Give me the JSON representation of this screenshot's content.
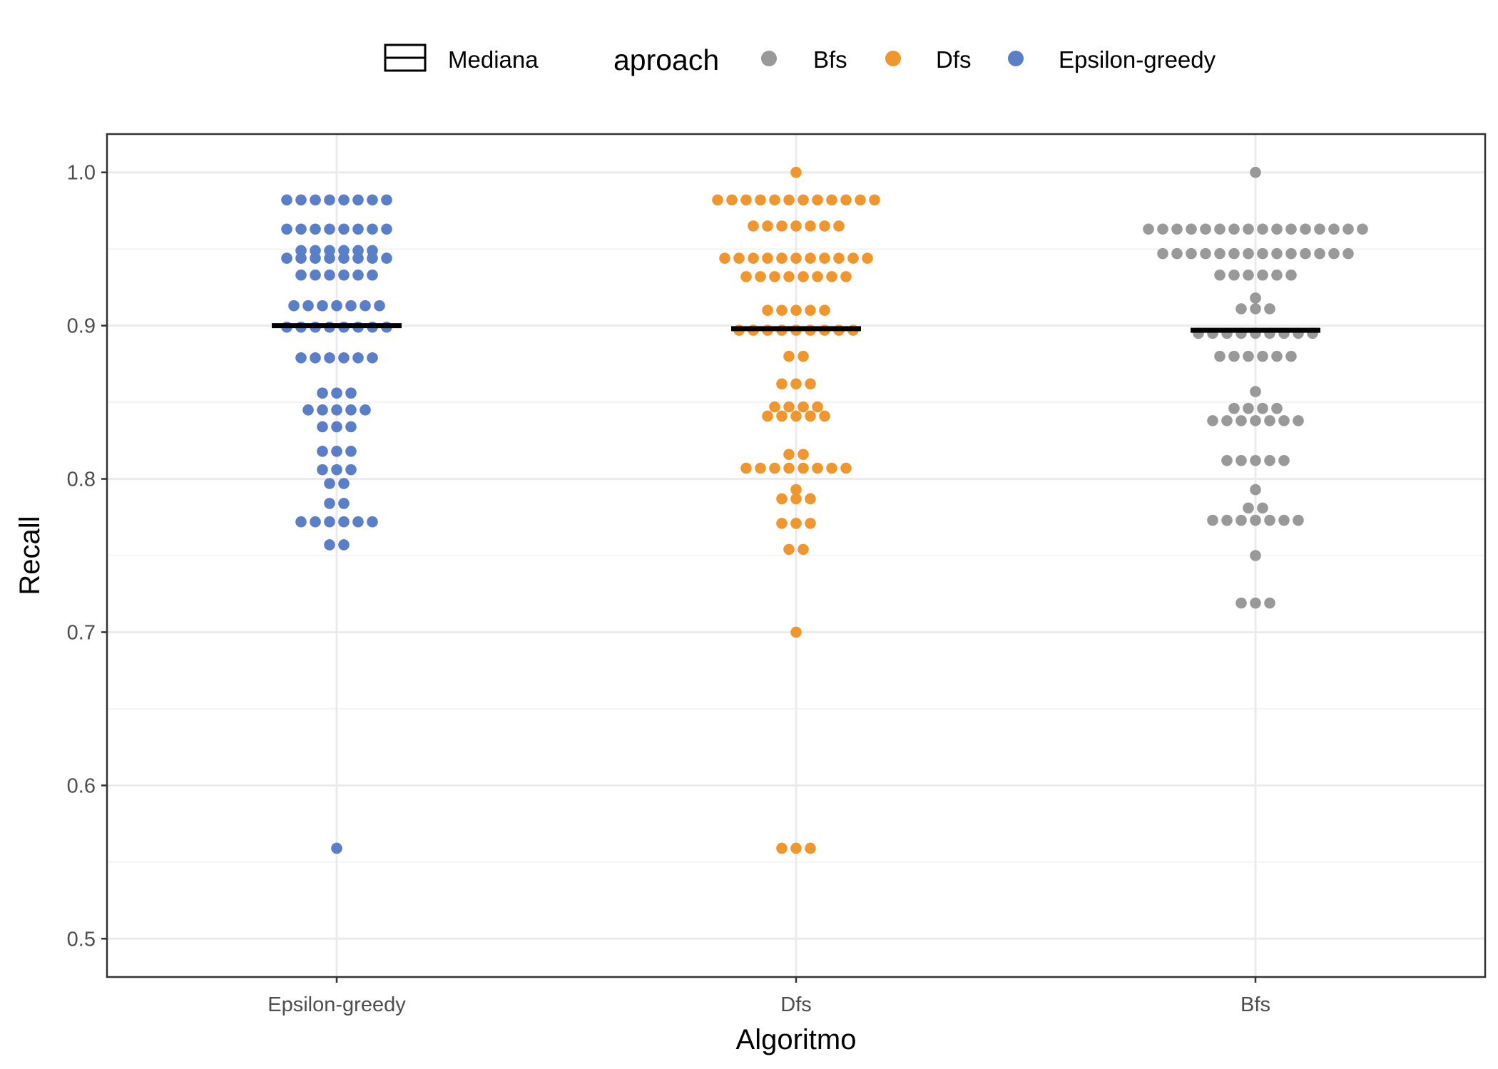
{
  "legend": {
    "median_label": "Mediana",
    "title": "aproach",
    "entries": [
      {
        "label": "Bfs",
        "color": "#999999"
      },
      {
        "label": "Dfs",
        "color": "#F0962F"
      },
      {
        "label": "Epsilon-greedy",
        "color": "#5A7EC7"
      }
    ]
  },
  "chart_data": {
    "type": "scatter",
    "subtype": "dotplot",
    "xlabel": "Algoritmo",
    "ylabel": "Recall",
    "ylim": [
      0.475,
      1.025
    ],
    "yticks": [
      0.5,
      0.6,
      0.7,
      0.8,
      0.9,
      1.0
    ],
    "ytick_labels": [
      "0.5",
      "0.6",
      "0.7",
      "0.8",
      "0.9",
      "1.0"
    ],
    "categories": [
      "Epsilon-greedy",
      "Dfs",
      "Bfs"
    ],
    "grid": true,
    "legend_position": "top",
    "series": [
      {
        "name": "Epsilon-greedy",
        "color": "#5A7EC7",
        "median": 0.9,
        "bins": [
          {
            "y": 0.982,
            "n": 8
          },
          {
            "y": 0.963,
            "n": 8
          },
          {
            "y": 0.949,
            "n": 6
          },
          {
            "y": 0.944,
            "n": 8
          },
          {
            "y": 0.933,
            "n": 6
          },
          {
            "y": 0.913,
            "n": 7
          },
          {
            "y": 0.899,
            "n": 8
          },
          {
            "y": 0.879,
            "n": 6
          },
          {
            "y": 0.856,
            "n": 3
          },
          {
            "y": 0.845,
            "n": 5
          },
          {
            "y": 0.834,
            "n": 3
          },
          {
            "y": 0.818,
            "n": 3
          },
          {
            "y": 0.806,
            "n": 3
          },
          {
            "y": 0.797,
            "n": 2
          },
          {
            "y": 0.784,
            "n": 2
          },
          {
            "y": 0.772,
            "n": 6
          },
          {
            "y": 0.757,
            "n": 2
          },
          {
            "y": 0.559,
            "n": 1
          }
        ]
      },
      {
        "name": "Dfs",
        "color": "#F0962F",
        "median": 0.898,
        "bins": [
          {
            "y": 1.0,
            "n": 1
          },
          {
            "y": 0.982,
            "n": 12
          },
          {
            "y": 0.965,
            "n": 7
          },
          {
            "y": 0.944,
            "n": 11
          },
          {
            "y": 0.932,
            "n": 8
          },
          {
            "y": 0.91,
            "n": 5
          },
          {
            "y": 0.897,
            "n": 9
          },
          {
            "y": 0.88,
            "n": 2
          },
          {
            "y": 0.862,
            "n": 3
          },
          {
            "y": 0.847,
            "n": 4
          },
          {
            "y": 0.841,
            "n": 5
          },
          {
            "y": 0.816,
            "n": 2
          },
          {
            "y": 0.807,
            "n": 8
          },
          {
            "y": 0.793,
            "n": 1
          },
          {
            "y": 0.787,
            "n": 3
          },
          {
            "y": 0.771,
            "n": 3
          },
          {
            "y": 0.754,
            "n": 2
          },
          {
            "y": 0.7,
            "n": 1
          },
          {
            "y": 0.559,
            "n": 3
          }
        ]
      },
      {
        "name": "Bfs",
        "color": "#999999",
        "median": 0.897,
        "bins": [
          {
            "y": 1.0,
            "n": 1
          },
          {
            "y": 0.963,
            "n": 16
          },
          {
            "y": 0.947,
            "n": 14
          },
          {
            "y": 0.933,
            "n": 6
          },
          {
            "y": 0.918,
            "n": 1
          },
          {
            "y": 0.911,
            "n": 3
          },
          {
            "y": 0.895,
            "n": 9
          },
          {
            "y": 0.88,
            "n": 6
          },
          {
            "y": 0.857,
            "n": 1
          },
          {
            "y": 0.846,
            "n": 4
          },
          {
            "y": 0.838,
            "n": 7
          },
          {
            "y": 0.812,
            "n": 5
          },
          {
            "y": 0.793,
            "n": 1
          },
          {
            "y": 0.781,
            "n": 2
          },
          {
            "y": 0.773,
            "n": 7
          },
          {
            "y": 0.75,
            "n": 1
          },
          {
            "y": 0.719,
            "n": 3
          }
        ]
      }
    ]
  }
}
